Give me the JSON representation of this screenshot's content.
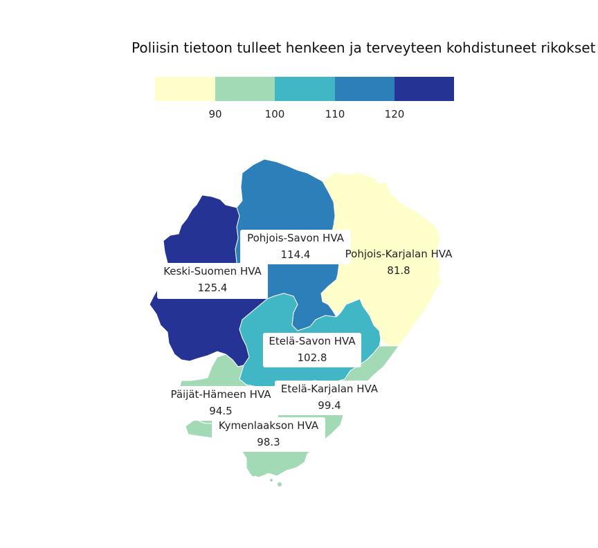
{
  "title": "Poliisin tietoon tulleet henkeen ja terveyteen kohdistuneet rikokset",
  "legend": {
    "colors": [
      "#ffffcc",
      "#a1dab4",
      "#41b6c4",
      "#2c7fb8",
      "#253494"
    ],
    "ticks": [
      "90",
      "100",
      "110",
      "120"
    ],
    "breaks": [
      90,
      100,
      110,
      120
    ]
  },
  "regions": [
    {
      "name": "Pohjois-Savon HVA",
      "value": "114.4",
      "color": "#2c7fb8"
    },
    {
      "name": "Pohjois-Karjalan HVA",
      "value": "81.8",
      "color": "#ffffcc"
    },
    {
      "name": "Keski-Suomen HVA",
      "value": "125.4",
      "color": "#253494"
    },
    {
      "name": "Etelä-Savon HVA",
      "value": "102.8",
      "color": "#41b6c4"
    },
    {
      "name": "Etelä-Karjalan HVA",
      "value": "99.4",
      "color": "#a1dab4"
    },
    {
      "name": "Päijät-Hämeen HVA",
      "value": "94.5",
      "color": "#a1dab4"
    },
    {
      "name": "Kymenlaakson HVA",
      "value": "98.3",
      "color": "#a1dab4"
    }
  ]
}
